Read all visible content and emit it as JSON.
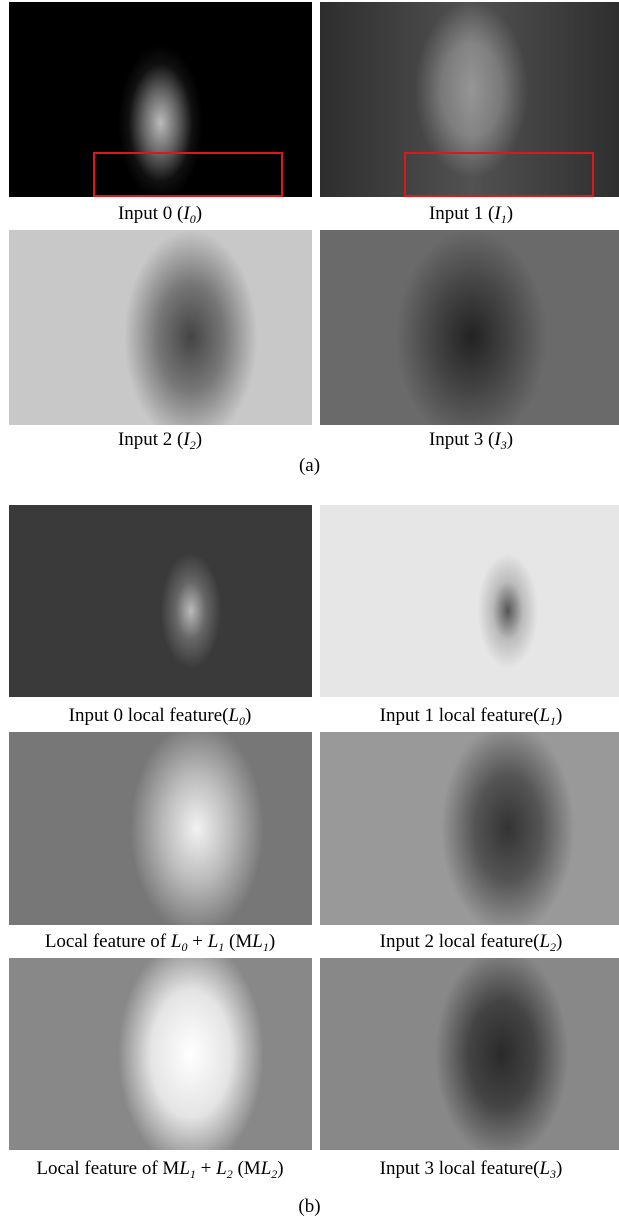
{
  "panel_a": {
    "captions": [
      [
        "Input 0 (",
        "I",
        "0",
        ")"
      ],
      [
        "Input 1 (",
        "I",
        "1",
        ")"
      ],
      [
        "Input 2 (",
        "I",
        "2",
        ")"
      ],
      [
        "Input 3 (",
        "I",
        "3",
        ")"
      ]
    ],
    "label": "(a)"
  },
  "panel_b": {
    "captions": [
      [
        "Input 0 local feature(",
        "L",
        "0",
        ")"
      ],
      [
        "Input 1 local feature(",
        "L",
        "1",
        ")"
      ],
      [
        "Local feature of ",
        "L",
        "0",
        " + ",
        "L",
        "1",
        " (M",
        "L",
        "1",
        ")"
      ],
      [
        "Input 2 local feature(",
        "L",
        "2",
        ")"
      ],
      [
        "Local feature of M",
        "L",
        "1",
        " + ",
        "L",
        "2",
        " (M",
        "L",
        "2",
        ")"
      ],
      [
        "Input 3 local feature(",
        "L",
        "3",
        ")"
      ]
    ],
    "label": "(b)"
  }
}
